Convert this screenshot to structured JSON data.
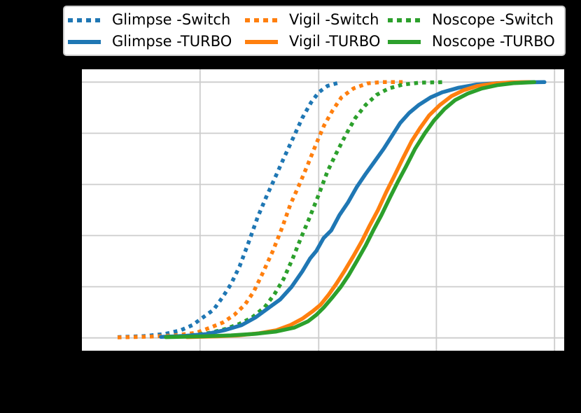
{
  "colors": {
    "page_background": "#000000",
    "plot_background": "#ffffff",
    "grid": "#cccccc",
    "legend_border": "#cccccc",
    "blue": "#1f77b4",
    "orange": "#ff7f0e",
    "green": "#2ca02c"
  },
  "legend": {
    "position": "top, above plot, horizontal 3 columns x 2 rows",
    "items": [
      {
        "label": "Glimpse -Switch",
        "style": "dotted",
        "color": "#1f77b4"
      },
      {
        "label": "Glimpse -TURBO",
        "style": "solid",
        "color": "#1f77b4"
      },
      {
        "label": "Vigil -Switch",
        "style": "dotted",
        "color": "#ff7f0e"
      },
      {
        "label": "Vigil -TURBO",
        "style": "solid",
        "color": "#ff7f0e"
      },
      {
        "label": "Noscope -Switch",
        "style": "dotted",
        "color": "#2ca02c"
      },
      {
        "label": "Noscope -TURBO",
        "style": "solid",
        "color": "#2ca02c"
      }
    ]
  },
  "chart_data": {
    "type": "line",
    "subtype": "empirical CDF curves",
    "title": "",
    "xlabel": "",
    "ylabel": "",
    "grid": true,
    "tick_labels_visible": false,
    "xlim": [
      0,
      1
    ],
    "ylim": [
      -0.05,
      1.05
    ],
    "x_gridlines": [
      0.245,
      0.491,
      0.735,
      0.98
    ],
    "y_gridlines": [
      0.0,
      0.2,
      0.4,
      0.6,
      0.8,
      1.0
    ],
    "x_note": "x normalized 0-1 across axis; tick labels not readable in image",
    "series": [
      {
        "name": "Glimpse -Switch",
        "color": "#1f77b4",
        "style": "dotted",
        "points": [
          [
            0.074,
            0.003
          ],
          [
            0.128,
            0.007
          ],
          [
            0.171,
            0.015
          ],
          [
            0.205,
            0.03
          ],
          [
            0.229,
            0.05
          ],
          [
            0.251,
            0.08
          ],
          [
            0.273,
            0.11
          ],
          [
            0.292,
            0.16
          ],
          [
            0.309,
            0.21
          ],
          [
            0.327,
            0.28
          ],
          [
            0.345,
            0.37
          ],
          [
            0.364,
            0.47
          ],
          [
            0.382,
            0.55
          ],
          [
            0.399,
            0.62
          ],
          [
            0.418,
            0.7
          ],
          [
            0.44,
            0.79
          ],
          [
            0.457,
            0.86
          ],
          [
            0.475,
            0.92
          ],
          [
            0.491,
            0.96
          ],
          [
            0.509,
            0.985
          ],
          [
            0.537,
            1.0
          ]
        ]
      },
      {
        "name": "Glimpse -TURBO",
        "color": "#1f77b4",
        "style": "solid",
        "points": [
          [
            0.164,
            0.004
          ],
          [
            0.215,
            0.008
          ],
          [
            0.258,
            0.015
          ],
          [
            0.295,
            0.03
          ],
          [
            0.331,
            0.05
          ],
          [
            0.36,
            0.08
          ],
          [
            0.389,
            0.12
          ],
          [
            0.411,
            0.15
          ],
          [
            0.435,
            0.2
          ],
          [
            0.457,
            0.26
          ],
          [
            0.473,
            0.31
          ],
          [
            0.486,
            0.34
          ],
          [
            0.501,
            0.39
          ],
          [
            0.517,
            0.42
          ],
          [
            0.534,
            0.48
          ],
          [
            0.552,
            0.53
          ],
          [
            0.57,
            0.59
          ],
          [
            0.588,
            0.64
          ],
          [
            0.607,
            0.69
          ],
          [
            0.626,
            0.74
          ],
          [
            0.643,
            0.79
          ],
          [
            0.66,
            0.84
          ],
          [
            0.679,
            0.88
          ],
          [
            0.698,
            0.91
          ],
          [
            0.723,
            0.94
          ],
          [
            0.747,
            0.96
          ],
          [
            0.781,
            0.978
          ],
          [
            0.817,
            0.99
          ],
          [
            0.861,
            0.996
          ],
          [
            0.911,
            0.999
          ],
          [
            0.959,
            1.0
          ]
        ]
      },
      {
        "name": "Vigil -Switch",
        "color": "#ff7f0e",
        "style": "dotted",
        "points": [
          [
            0.074,
            0.002
          ],
          [
            0.142,
            0.005
          ],
          [
            0.193,
            0.01
          ],
          [
            0.237,
            0.02
          ],
          [
            0.266,
            0.04
          ],
          [
            0.292,
            0.06
          ],
          [
            0.316,
            0.09
          ],
          [
            0.338,
            0.13
          ],
          [
            0.356,
            0.18
          ],
          [
            0.374,
            0.25
          ],
          [
            0.396,
            0.34
          ],
          [
            0.415,
            0.43
          ],
          [
            0.432,
            0.52
          ],
          [
            0.451,
            0.6
          ],
          [
            0.469,
            0.68
          ],
          [
            0.486,
            0.76
          ],
          [
            0.502,
            0.83
          ],
          [
            0.52,
            0.89
          ],
          [
            0.538,
            0.94
          ],
          [
            0.563,
            0.975
          ],
          [
            0.592,
            0.995
          ],
          [
            0.621,
            1.0
          ],
          [
            0.665,
            1.0
          ]
        ]
      },
      {
        "name": "Vigil -TURBO",
        "color": "#ff7f0e",
        "style": "solid",
        "points": [
          [
            0.218,
            0.003
          ],
          [
            0.28,
            0.006
          ],
          [
            0.324,
            0.01
          ],
          [
            0.367,
            0.018
          ],
          [
            0.403,
            0.03
          ],
          [
            0.432,
            0.05
          ],
          [
            0.457,
            0.075
          ],
          [
            0.479,
            0.105
          ],
          [
            0.495,
            0.13
          ],
          [
            0.512,
            0.17
          ],
          [
            0.527,
            0.21
          ],
          [
            0.544,
            0.26
          ],
          [
            0.563,
            0.32
          ],
          [
            0.581,
            0.38
          ],
          [
            0.597,
            0.44
          ],
          [
            0.614,
            0.5
          ],
          [
            0.631,
            0.57
          ],
          [
            0.647,
            0.63
          ],
          [
            0.665,
            0.7
          ],
          [
            0.684,
            0.77
          ],
          [
            0.701,
            0.82
          ],
          [
            0.72,
            0.87
          ],
          [
            0.742,
            0.91
          ],
          [
            0.766,
            0.945
          ],
          [
            0.791,
            0.968
          ],
          [
            0.82,
            0.985
          ],
          [
            0.853,
            0.994
          ],
          [
            0.89,
            0.999
          ],
          [
            0.929,
            1.0
          ]
        ]
      },
      {
        "name": "Noscope -Switch",
        "color": "#2ca02c",
        "style": "dotted",
        "points": [
          [
            0.226,
            0.01
          ],
          [
            0.266,
            0.02
          ],
          [
            0.298,
            0.035
          ],
          [
            0.327,
            0.055
          ],
          [
            0.353,
            0.08
          ],
          [
            0.379,
            0.12
          ],
          [
            0.399,
            0.17
          ],
          [
            0.418,
            0.23
          ],
          [
            0.437,
            0.31
          ],
          [
            0.454,
            0.39
          ],
          [
            0.472,
            0.47
          ],
          [
            0.491,
            0.56
          ],
          [
            0.509,
            0.65
          ],
          [
            0.527,
            0.72
          ],
          [
            0.546,
            0.79
          ],
          [
            0.567,
            0.86
          ],
          [
            0.588,
            0.91
          ],
          [
            0.611,
            0.95
          ],
          [
            0.636,
            0.975
          ],
          [
            0.665,
            0.99
          ],
          [
            0.701,
            0.998
          ],
          [
            0.752,
            1.0
          ]
        ]
      },
      {
        "name": "Noscope -TURBO",
        "color": "#2ca02c",
        "style": "solid",
        "points": [
          [
            0.174,
            0.003
          ],
          [
            0.251,
            0.006
          ],
          [
            0.309,
            0.01
          ],
          [
            0.36,
            0.016
          ],
          [
            0.403,
            0.025
          ],
          [
            0.44,
            0.04
          ],
          [
            0.469,
            0.065
          ],
          [
            0.486,
            0.09
          ],
          [
            0.502,
            0.12
          ],
          [
            0.52,
            0.16
          ],
          [
            0.537,
            0.2
          ],
          [
            0.553,
            0.245
          ],
          [
            0.57,
            0.3
          ],
          [
            0.588,
            0.36
          ],
          [
            0.604,
            0.42
          ],
          [
            0.621,
            0.48
          ],
          [
            0.639,
            0.55
          ],
          [
            0.655,
            0.61
          ],
          [
            0.672,
            0.67
          ],
          [
            0.691,
            0.74
          ],
          [
            0.711,
            0.8
          ],
          [
            0.73,
            0.85
          ],
          [
            0.752,
            0.895
          ],
          [
            0.774,
            0.93
          ],
          [
            0.8,
            0.955
          ],
          [
            0.829,
            0.975
          ],
          [
            0.861,
            0.988
          ],
          [
            0.897,
            0.996
          ],
          [
            0.938,
            1.0
          ]
        ]
      }
    ],
    "legend_position": "upper center, outside axes"
  }
}
